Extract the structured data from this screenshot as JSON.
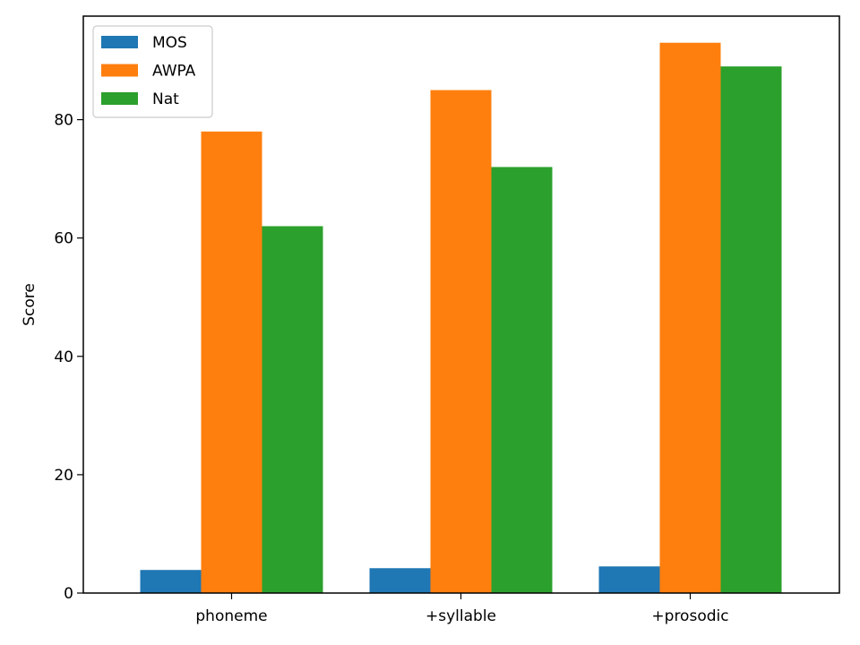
{
  "chart_data": {
    "type": "bar",
    "title": "",
    "xlabel": "",
    "ylabel": "Score",
    "categories": [
      "phoneme",
      "+syllable",
      "+prosodic"
    ],
    "ylim": [
      0,
      97.5
    ],
    "yticks": [
      0,
      20,
      40,
      60,
      80
    ],
    "grid": false,
    "legend_position": "top-left",
    "series": [
      {
        "name": "MOS",
        "color": "#1f77b4",
        "values": [
          3.9,
          4.2,
          4.5
        ]
      },
      {
        "name": "AWPA",
        "color": "#ff7f0e",
        "values": [
          78,
          85,
          93
        ]
      },
      {
        "name": "Nat",
        "color": "#2ca02c",
        "values": [
          62,
          72,
          89
        ]
      }
    ]
  }
}
